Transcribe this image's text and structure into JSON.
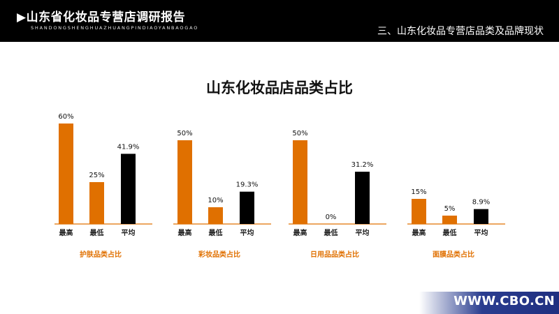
{
  "header": {
    "title": "▶山东省化妆品专营店调研报告",
    "subtitle": "SHANDONGSHENGHUAZHUANGPINDIAOYANBAOGAO",
    "section": "三、山东化妆品专营店品类及品牌现状"
  },
  "colors": {
    "highlight": "#E07000",
    "average": "#000000",
    "group_label": "#E07000"
  },
  "chart_data": {
    "type": "bar",
    "title": "山东化妆品店品类占比",
    "categories": [
      "最高",
      "最低",
      "平均"
    ],
    "groups": [
      {
        "label": "护肤品类占比",
        "values": [
          60,
          25,
          41.9
        ],
        "value_labels": [
          "60%",
          "25%",
          "41.9%"
        ]
      },
      {
        "label": "彩妆品类占比",
        "values": [
          50,
          10,
          19.3
        ],
        "value_labels": [
          "50%",
          "10%",
          "19.3%"
        ]
      },
      {
        "label": "日用品品类占比",
        "values": [
          50,
          0,
          31.2
        ],
        "value_labels": [
          "50%",
          "0%",
          "31.2%"
        ]
      },
      {
        "label": "面膜品类占比",
        "values": [
          15,
          5,
          8.9
        ],
        "value_labels": [
          "15%",
          "5%",
          "8.9%"
        ]
      }
    ]
  },
  "footer": {
    "website": "WWW.CBO.CN"
  }
}
